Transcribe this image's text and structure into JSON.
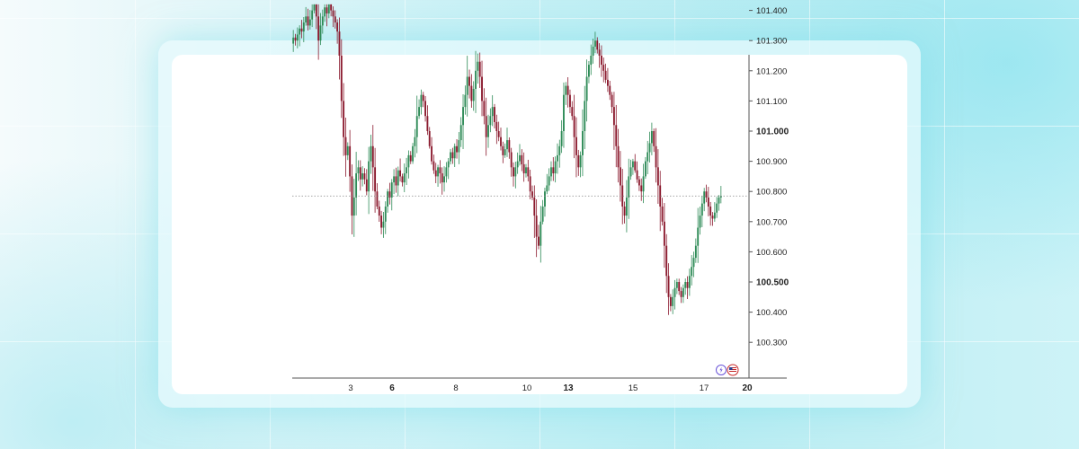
{
  "chart_data": {
    "type": "candlestick",
    "title": "",
    "xlabel": "",
    "ylabel": "",
    "ylim": [
      100.25,
      101.42
    ],
    "x_ticks": [
      {
        "label": "3",
        "bold": false
      },
      {
        "label": "6",
        "bold": true
      },
      {
        "label": "8",
        "bold": false
      },
      {
        "label": "10",
        "bold": false
      },
      {
        "label": "13",
        "bold": true
      },
      {
        "label": "15",
        "bold": false
      },
      {
        "label": "17",
        "bold": false
      },
      {
        "label": "20",
        "bold": true
      }
    ],
    "y_ticks": [
      {
        "label": "101.400",
        "value": 101.4,
        "bold": false
      },
      {
        "label": "101.300",
        "value": 101.3,
        "bold": false
      },
      {
        "label": "101.200",
        "value": 101.2,
        "bold": false
      },
      {
        "label": "101.100",
        "value": 101.1,
        "bold": false
      },
      {
        "label": "101.000",
        "value": 101.0,
        "bold": true
      },
      {
        "label": "100.900",
        "value": 100.9,
        "bold": false
      },
      {
        "label": "100.800",
        "value": 100.8,
        "bold": false
      },
      {
        "label": "100.700",
        "value": 100.7,
        "bold": false
      },
      {
        "label": "100.600",
        "value": 100.6,
        "bold": false
      },
      {
        "label": "100.500",
        "value": 100.5,
        "bold": true
      },
      {
        "label": "100.400",
        "value": 100.4,
        "bold": false
      },
      {
        "label": "100.300",
        "value": 100.3,
        "bold": false
      }
    ],
    "last_price": 100.785,
    "colors": {
      "up": "#2e8b57",
      "down": "#8b1a2e",
      "text": "#222222",
      "axis": "#555555",
      "price_line": "#888888"
    },
    "close_path": [
      101.31,
      101.3,
      101.32,
      101.34,
      101.33,
      101.36,
      101.38,
      101.35,
      101.37,
      101.4,
      101.42,
      101.38,
      101.3,
      101.35,
      101.38,
      101.41,
      101.39,
      101.42,
      101.4,
      101.38,
      101.36,
      101.33,
      101.25,
      101.1,
      100.98,
      100.92,
      100.95,
      100.85,
      100.72,
      100.78,
      100.86,
      100.88,
      100.84,
      100.86,
      100.84,
      100.8,
      100.9,
      100.95,
      100.88,
      100.8,
      100.75,
      100.72,
      100.68,
      100.7,
      100.75,
      100.8,
      100.78,
      100.83,
      100.85,
      100.82,
      100.87,
      100.85,
      100.83,
      100.86,
      100.88,
      100.92,
      100.9,
      100.95,
      100.98,
      101.05,
      101.08,
      101.12,
      101.1,
      101.05,
      101.0,
      100.95,
      100.9,
      100.87,
      100.85,
      100.88,
      100.86,
      100.83,
      100.85,
      100.88,
      100.9,
      100.93,
      100.91,
      100.95,
      100.93,
      100.97,
      101.02,
      101.08,
      101.12,
      101.18,
      101.15,
      101.1,
      101.14,
      101.2,
      101.23,
      101.18,
      101.1,
      101.05,
      100.98,
      101.02,
      101.05,
      101.08,
      101.03,
      101.0,
      100.98,
      100.95,
      100.92,
      100.94,
      100.97,
      100.93,
      100.88,
      100.85,
      100.88,
      100.9,
      100.92,
      100.89,
      100.86,
      100.88,
      100.85,
      100.8,
      100.78,
      100.72,
      100.65,
      100.62,
      100.7,
      100.75,
      100.8,
      100.82,
      100.85,
      100.88,
      100.86,
      100.9,
      100.92,
      100.95,
      101.0,
      101.12,
      101.15,
      101.12,
      101.08,
      101.05,
      100.98,
      100.92,
      100.88,
      100.92,
      101.0,
      101.1,
      101.18,
      101.22,
      101.25,
      101.28,
      101.3,
      101.27,
      101.25,
      101.22,
      101.2,
      101.17,
      101.15,
      101.12,
      101.08,
      101.02,
      100.95,
      100.88,
      100.82,
      100.75,
      100.72,
      100.78,
      100.85,
      100.88,
      100.9,
      100.87,
      100.84,
      100.82,
      100.8,
      100.85,
      100.9,
      100.93,
      100.96,
      101.0,
      100.95,
      100.88,
      100.82,
      100.75,
      100.7,
      100.62,
      100.52,
      100.45,
      100.42,
      100.45,
      100.48,
      100.5,
      100.47,
      100.45,
      100.48,
      100.5,
      100.48,
      100.52,
      100.55,
      100.58,
      100.62,
      100.68,
      100.72,
      100.76,
      100.8,
      100.78,
      100.75,
      100.72,
      100.71,
      100.73,
      100.76,
      100.78,
      100.785
    ]
  }
}
